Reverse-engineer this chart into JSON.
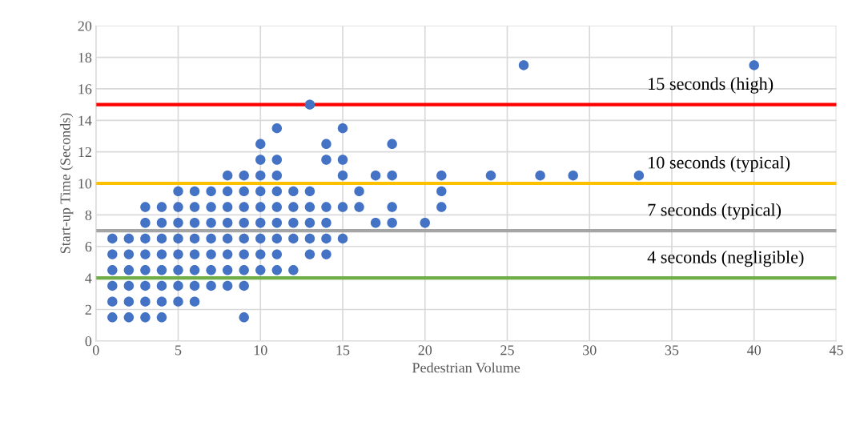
{
  "chart_data": {
    "type": "scatter",
    "xlabel": "Pedestrian Volume",
    "ylabel": "Start-up Time (Seconds)",
    "xlim": [
      0,
      45
    ],
    "xticks": [
      0,
      5,
      10,
      15,
      20,
      25,
      30,
      35,
      40,
      45
    ],
    "ylim": [
      0,
      20
    ],
    "yticks": [
      0,
      2,
      4,
      6,
      8,
      10,
      12,
      14,
      16,
      18,
      20
    ],
    "grid": true,
    "marker": "circle",
    "series": [
      {
        "color": "#4472c4",
        "x": [
          1,
          1,
          1,
          1,
          1,
          1,
          2,
          2,
          2,
          2,
          2,
          2,
          3,
          3,
          3,
          3,
          3,
          3,
          3,
          3,
          4,
          4,
          4,
          4,
          4,
          4,
          4,
          4,
          5,
          5,
          5,
          5,
          5,
          5,
          5,
          5,
          6,
          6,
          6,
          6,
          6,
          6,
          6,
          6,
          7,
          7,
          7,
          7,
          7,
          7,
          7,
          8,
          8,
          8,
          8,
          8,
          8,
          8,
          8,
          9,
          9,
          9,
          9,
          9,
          9,
          9,
          9,
          9,
          10,
          10,
          10,
          10,
          10,
          10,
          10,
          10,
          10,
          11,
          11,
          11,
          11,
          11,
          11,
          11,
          11,
          11,
          12,
          12,
          12,
          12,
          12,
          13,
          13,
          13,
          13,
          13,
          13,
          14,
          14,
          14,
          14,
          14,
          14,
          15,
          15,
          15,
          15,
          15,
          16,
          16,
          17,
          17,
          18,
          18,
          18,
          18,
          20,
          21,
          21,
          21,
          24,
          26,
          27,
          29,
          33,
          40
        ],
        "values": [
          1.5,
          2.5,
          3.5,
          4.5,
          5.5,
          6.5,
          1.5,
          2.5,
          3.5,
          4.5,
          5.5,
          6.5,
          1.5,
          2.5,
          3.5,
          4.5,
          5.5,
          6.5,
          7.5,
          8.5,
          1.5,
          2.5,
          3.5,
          4.5,
          5.5,
          6.5,
          7.5,
          8.5,
          2.5,
          3.5,
          4.5,
          5.5,
          6.5,
          7.5,
          8.5,
          9.5,
          2.5,
          3.5,
          4.5,
          5.5,
          6.5,
          7.5,
          8.5,
          9.5,
          3.5,
          4.5,
          5.5,
          6.5,
          7.5,
          8.5,
          9.5,
          3.5,
          4.5,
          5.5,
          6.5,
          7.5,
          8.5,
          9.5,
          10.5,
          1.5,
          3.5,
          4.5,
          5.5,
          6.5,
          7.5,
          8.5,
          9.5,
          10.5,
          4.5,
          5.5,
          6.5,
          7.5,
          8.5,
          9.5,
          10.5,
          11.5,
          12.5,
          4.5,
          5.5,
          6.5,
          7.5,
          8.5,
          9.5,
          10.5,
          11.5,
          13.5,
          4.5,
          6.5,
          7.5,
          8.5,
          9.5,
          5.5,
          6.5,
          7.5,
          8.5,
          9.5,
          15,
          5.5,
          6.5,
          7.5,
          8.5,
          11.5,
          12.5,
          6.5,
          8.5,
          10.5,
          11.5,
          13.5,
          8.5,
          9.5,
          7.5,
          10.5,
          7.5,
          8.5,
          10.5,
          12.5,
          7.5,
          8.5,
          9.5,
          10.5,
          10.5,
          17.5,
          10.5,
          10.5,
          10.5,
          17.5
        ]
      }
    ],
    "ref_lines": [
      {
        "axis": "y",
        "value": 15,
        "label": "15 seconds (high)",
        "color": "#ff0000"
      },
      {
        "axis": "y",
        "value": 10,
        "label": "10 seconds (typical)",
        "color": "#ffc000"
      },
      {
        "axis": "y",
        "value": 7,
        "label": "7 seconds (typical)",
        "color": "#a5a5a5"
      },
      {
        "axis": "y",
        "value": 4,
        "label": "4 seconds (negligible)",
        "color": "#70ad47"
      }
    ]
  }
}
